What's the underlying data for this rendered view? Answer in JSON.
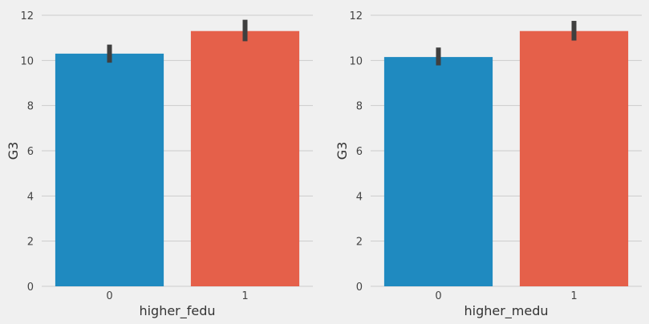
{
  "chart_data": [
    {
      "type": "bar",
      "title": "",
      "xlabel": "higher_fedu",
      "ylabel": "G3",
      "categories": [
        "0",
        "1"
      ],
      "values": [
        10.3,
        11.3
      ],
      "error_bars": [
        [
          9.9,
          10.7
        ],
        [
          10.85,
          11.8
        ]
      ],
      "colors": [
        "#1f8ac0",
        "#e5604a"
      ],
      "ylim": [
        0,
        12
      ],
      "yticks": [
        0,
        2,
        4,
        6,
        8,
        10,
        12
      ],
      "grid": true
    },
    {
      "type": "bar",
      "title": "",
      "xlabel": "higher_medu",
      "ylabel": "G3",
      "categories": [
        "0",
        "1"
      ],
      "values": [
        10.15,
        11.3
      ],
      "error_bars": [
        [
          9.78,
          10.57
        ],
        [
          10.88,
          11.75
        ]
      ],
      "colors": [
        "#1f8ac0",
        "#e5604a"
      ],
      "ylim": [
        0,
        12
      ],
      "yticks": [
        0,
        2,
        4,
        6,
        8,
        10,
        12
      ],
      "grid": true
    }
  ]
}
